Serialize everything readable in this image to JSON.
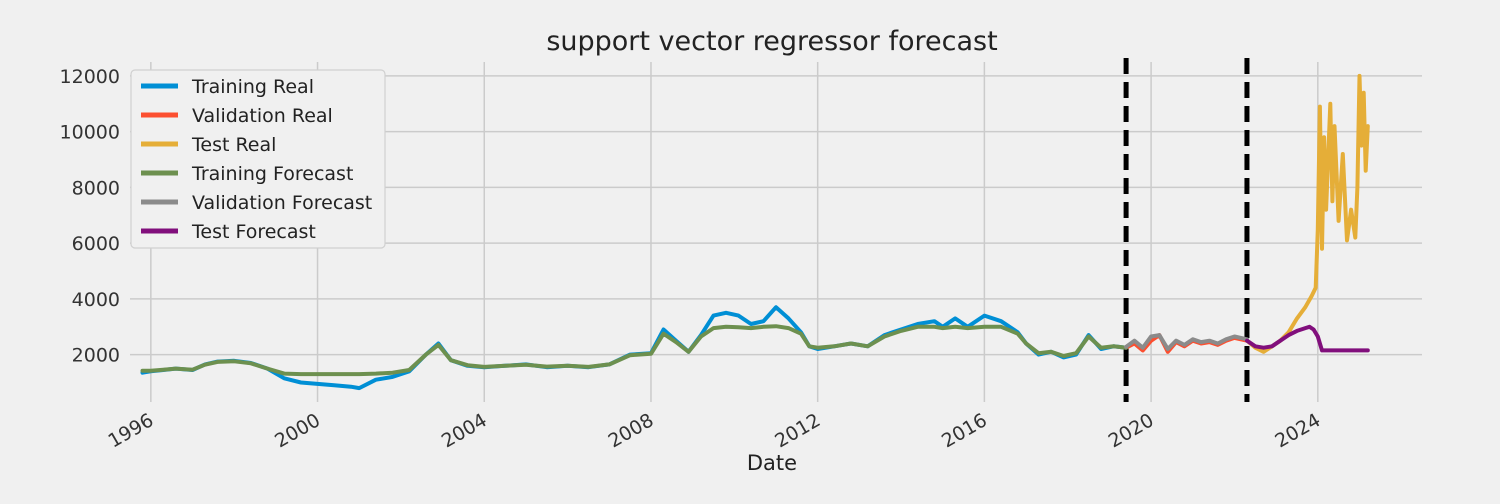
{
  "chart_data": {
    "type": "line",
    "title": "support vector regressor forecast",
    "xlabel": "Date",
    "ylabel": "",
    "xlim": [
      1995.5,
      2026.5
    ],
    "ylim": [
      300,
      12500
    ],
    "x_ticks": [
      1996,
      2000,
      2004,
      2008,
      2012,
      2016,
      2020,
      2024
    ],
    "y_ticks": [
      2000,
      4000,
      6000,
      8000,
      10000,
      12000
    ],
    "grid": true,
    "legend_position": "top-left",
    "split_lines": [
      2019.4,
      2022.3
    ],
    "colors": {
      "background": "#f0f0f0",
      "grid": "#cbcbcb",
      "split_line": "#000000"
    },
    "series": [
      {
        "name": "Training Real",
        "color": "#008fd5",
        "x": [
          1995.8,
          1996.0,
          1996.3,
          1996.6,
          1997.0,
          1997.3,
          1997.6,
          1998.0,
          1998.4,
          1998.8,
          1999.2,
          1999.6,
          2000.0,
          2000.4,
          2000.8,
          2001.0,
          2001.4,
          2001.8,
          2002.2,
          2002.6,
          2002.9,
          2003.2,
          2003.6,
          2004.0,
          2004.5,
          2005.0,
          2005.5,
          2006.0,
          2006.5,
          2007.0,
          2007.5,
          2008.0,
          2008.3,
          2008.6,
          2008.9,
          2009.2,
          2009.5,
          2009.8,
          2010.1,
          2010.4,
          2010.7,
          2011.0,
          2011.3,
          2011.6,
          2011.8,
          2012.0,
          2012.4,
          2012.8,
          2013.2,
          2013.6,
          2014.0,
          2014.4,
          2014.8,
          2015.0,
          2015.3,
          2015.6,
          2016.0,
          2016.4,
          2016.8,
          2017.0,
          2017.3,
          2017.6,
          2017.9,
          2018.2,
          2018.5,
          2018.8,
          2019.1,
          2019.4
        ],
        "values": [
          1350,
          1400,
          1450,
          1500,
          1450,
          1650,
          1750,
          1780,
          1700,
          1500,
          1150,
          1000,
          950,
          900,
          850,
          800,
          1100,
          1200,
          1400,
          2000,
          2400,
          1800,
          1600,
          1550,
          1600,
          1650,
          1550,
          1600,
          1550,
          1650,
          2000,
          2050,
          2900,
          2500,
          2100,
          2700,
          3400,
          3500,
          3400,
          3100,
          3200,
          3700,
          3300,
          2800,
          2300,
          2200,
          2300,
          2400,
          2300,
          2700,
          2900,
          3100,
          3200,
          3000,
          3300,
          3000,
          3400,
          3200,
          2800,
          2400,
          2000,
          2100,
          1900,
          2000,
          2700,
          2200,
          2300,
          2250
        ]
      },
      {
        "name": "Validation Real",
        "color": "#fc4f30",
        "x": [
          2019.4,
          2019.6,
          2019.8,
          2020.0,
          2020.2,
          2020.4,
          2020.6,
          2020.8,
          2021.0,
          2021.2,
          2021.4,
          2021.6,
          2021.8,
          2022.0,
          2022.3
        ],
        "values": [
          2250,
          2400,
          2150,
          2500,
          2700,
          2100,
          2450,
          2300,
          2500,
          2400,
          2450,
          2350,
          2500,
          2600,
          2500
        ]
      },
      {
        "name": "Test Real",
        "color": "#e5ae38",
        "x": [
          2022.3,
          2022.5,
          2022.7,
          2022.9,
          2023.1,
          2023.3,
          2023.5,
          2023.7,
          2023.85,
          2023.95,
          2024.0,
          2024.05,
          2024.1,
          2024.15,
          2024.2,
          2024.3,
          2024.35,
          2024.4,
          2024.5,
          2024.6,
          2024.7,
          2024.8,
          2024.9,
          2024.95,
          2025.0,
          2025.05,
          2025.1,
          2025.15,
          2025.2
        ],
        "values": [
          2500,
          2250,
          2100,
          2300,
          2500,
          2800,
          3300,
          3700,
          4100,
          4400,
          6500,
          10900,
          5800,
          9800,
          7200,
          11000,
          7500,
          10200,
          6800,
          9200,
          6100,
          7200,
          6200,
          8000,
          12000,
          9500,
          11400,
          8600,
          10200
        ]
      },
      {
        "name": "Training Forecast",
        "color": "#6d904f",
        "x": [
          1995.8,
          1996.0,
          1996.3,
          1996.6,
          1997.0,
          1997.3,
          1997.6,
          1998.0,
          1998.4,
          1998.8,
          1999.2,
          1999.6,
          2000.0,
          2000.4,
          2000.8,
          2001.0,
          2001.4,
          2001.8,
          2002.2,
          2002.6,
          2002.9,
          2003.2,
          2003.6,
          2004.0,
          2004.5,
          2005.0,
          2005.5,
          2006.0,
          2006.5,
          2007.0,
          2007.5,
          2008.0,
          2008.3,
          2008.6,
          2008.9,
          2009.2,
          2009.5,
          2009.8,
          2010.1,
          2010.4,
          2010.7,
          2011.0,
          2011.3,
          2011.6,
          2011.8,
          2012.0,
          2012.4,
          2012.8,
          2013.2,
          2013.6,
          2014.0,
          2014.4,
          2014.8,
          2015.0,
          2015.3,
          2015.6,
          2016.0,
          2016.4,
          2016.8,
          2017.0,
          2017.3,
          2017.6,
          2017.9,
          2018.2,
          2018.5,
          2018.8,
          2019.1,
          2019.4
        ],
        "values": [
          1420,
          1420,
          1460,
          1500,
          1460,
          1640,
          1740,
          1760,
          1690,
          1500,
          1320,
          1300,
          1300,
          1300,
          1300,
          1300,
          1320,
          1350,
          1450,
          2000,
          2350,
          1800,
          1620,
          1560,
          1600,
          1640,
          1570,
          1600,
          1560,
          1650,
          1980,
          2030,
          2750,
          2450,
          2100,
          2650,
          2950,
          3000,
          2980,
          2950,
          3000,
          3020,
          2950,
          2750,
          2300,
          2250,
          2300,
          2400,
          2300,
          2650,
          2850,
          3000,
          3000,
          2950,
          3000,
          2950,
          3000,
          3000,
          2750,
          2400,
          2050,
          2100,
          1950,
          2050,
          2650,
          2250,
          2300,
          2250
        ]
      },
      {
        "name": "Validation Forecast",
        "color": "#8b8b8b",
        "x": [
          2019.4,
          2019.6,
          2019.8,
          2020.0,
          2020.2,
          2020.4,
          2020.6,
          2020.8,
          2021.0,
          2021.2,
          2021.4,
          2021.6,
          2021.8,
          2022.0,
          2022.3
        ],
        "values": [
          2280,
          2500,
          2250,
          2650,
          2700,
          2200,
          2500,
          2350,
          2550,
          2450,
          2500,
          2400,
          2550,
          2650,
          2550
        ]
      },
      {
        "name": "Test Forecast",
        "color": "#810f7c",
        "x": [
          2022.3,
          2022.5,
          2022.7,
          2022.9,
          2023.1,
          2023.3,
          2023.5,
          2023.7,
          2023.8,
          2023.9,
          2024.0,
          2024.1,
          2024.5,
          2025.2
        ],
        "values": [
          2500,
          2300,
          2250,
          2300,
          2500,
          2700,
          2850,
          2950,
          3000,
          2900,
          2650,
          2150,
          2150,
          2150
        ]
      }
    ]
  }
}
